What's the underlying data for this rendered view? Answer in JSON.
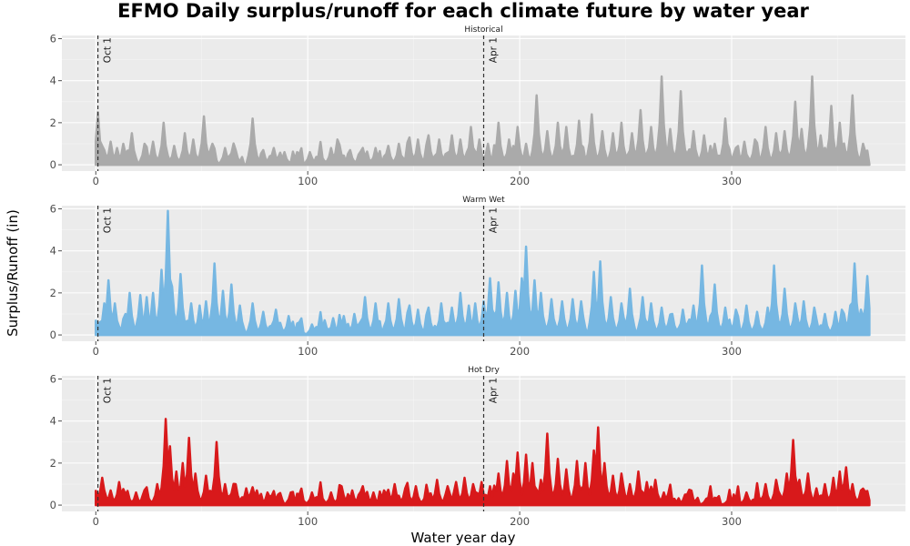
{
  "chart_data": {
    "type": "area",
    "title": "EFMO Daily surplus/runoff for each climate future by water year",
    "xlabel": "Water year day",
    "ylabel": "Surplus/Runoff (in)",
    "xlim": [
      -16,
      382
    ],
    "ylim": [
      -0.3,
      6.15
    ],
    "xticks": [
      "0",
      "100",
      "200",
      "300"
    ],
    "yticks": [
      "0",
      "2",
      "4",
      "6"
    ],
    "grid": true,
    "annotations": [
      {
        "label": "Oct 1",
        "x": 1
      },
      {
        "label": "Apr 1",
        "x": 183
      }
    ],
    "panels": [
      {
        "name": "Historical",
        "color": "#aaaaaa",
        "peaks": [
          [
            1,
            2.5
          ],
          [
            3,
            0.9
          ],
          [
            7,
            1.1
          ],
          [
            10,
            0.8
          ],
          [
            13,
            1.0
          ],
          [
            17,
            1.5
          ],
          [
            23,
            1.0
          ],
          [
            27,
            1.1
          ],
          [
            32,
            2.0
          ],
          [
            37,
            0.9
          ],
          [
            42,
            1.5
          ],
          [
            46,
            1.2
          ],
          [
            51,
            2.3
          ],
          [
            55,
            1.0
          ],
          [
            61,
            0.8
          ],
          [
            66,
            0.7
          ],
          [
            74,
            2.2
          ],
          [
            79,
            0.7
          ],
          [
            84,
            0.8
          ],
          [
            89,
            0.6
          ],
          [
            95,
            0.6
          ],
          [
            101,
            0.6
          ],
          [
            106,
            0.7
          ],
          [
            111,
            0.8
          ],
          [
            114,
            1.2
          ],
          [
            120,
            0.7
          ],
          [
            126,
            0.8
          ],
          [
            132,
            0.8
          ],
          [
            138,
            0.9
          ],
          [
            143,
            1.0
          ],
          [
            148,
            1.3
          ],
          [
            152,
            1.2
          ],
          [
            157,
            1.4
          ],
          [
            162,
            1.2
          ],
          [
            168,
            1.4
          ],
          [
            172,
            1.2
          ],
          [
            177,
            1.8
          ],
          [
            181,
            1.2
          ],
          [
            185,
            1.0
          ],
          [
            190,
            2.0
          ],
          [
            195,
            1.2
          ],
          [
            199,
            1.8
          ],
          [
            203,
            1.0
          ],
          [
            208,
            3.3
          ],
          [
            213,
            1.6
          ],
          [
            218,
            2.0
          ],
          [
            222,
            1.8
          ],
          [
            228,
            2.1
          ],
          [
            234,
            2.4
          ],
          [
            239,
            1.6
          ],
          [
            244,
            1.5
          ],
          [
            248,
            2.0
          ],
          [
            253,
            1.5
          ],
          [
            257,
            2.6
          ],
          [
            262,
            1.8
          ],
          [
            267,
            4.2
          ],
          [
            271,
            1.7
          ],
          [
            276,
            3.5
          ],
          [
            282,
            1.6
          ],
          [
            287,
            1.4
          ],
          [
            292,
            1.0
          ],
          [
            297,
            2.2
          ],
          [
            302,
            0.8
          ],
          [
            306,
            1.1
          ],
          [
            311,
            1.2
          ],
          [
            316,
            1.8
          ],
          [
            321,
            1.5
          ],
          [
            325,
            1.6
          ],
          [
            330,
            3.0
          ],
          [
            333,
            1.7
          ],
          [
            338,
            4.2
          ],
          [
            342,
            1.4
          ],
          [
            347,
            2.8
          ],
          [
            351,
            2.0
          ],
          [
            357,
            3.3
          ],
          [
            362,
            1.0
          ]
        ]
      },
      {
        "name": "Warm Wet",
        "color": "#76b7e2",
        "peaks": [
          [
            1,
            0.5
          ],
          [
            4,
            1.5
          ],
          [
            6,
            2.6
          ],
          [
            9,
            1.5
          ],
          [
            14,
            1.0
          ],
          [
            16,
            2.0
          ],
          [
            21,
            1.9
          ],
          [
            24,
            1.8
          ],
          [
            27,
            2.0
          ],
          [
            31,
            3.1
          ],
          [
            33,
            2.1
          ],
          [
            34,
            5.9
          ],
          [
            36,
            2.3
          ],
          [
            40,
            2.9
          ],
          [
            45,
            1.5
          ],
          [
            49,
            1.4
          ],
          [
            52,
            1.6
          ],
          [
            56,
            3.4
          ],
          [
            60,
            2.1
          ],
          [
            64,
            2.4
          ],
          [
            68,
            1.4
          ],
          [
            74,
            1.5
          ],
          [
            79,
            1.1
          ],
          [
            85,
            1.2
          ],
          [
            91,
            0.9
          ],
          [
            96,
            0.6
          ],
          [
            102,
            0.5
          ],
          [
            108,
            0.7
          ],
          [
            112,
            0.8
          ],
          [
            117,
            0.9
          ],
          [
            122,
            1.0
          ],
          [
            127,
            1.8
          ],
          [
            132,
            1.5
          ],
          [
            138,
            1.5
          ],
          [
            143,
            1.7
          ],
          [
            148,
            1.4
          ],
          [
            152,
            1.2
          ],
          [
            157,
            1.3
          ],
          [
            163,
            1.5
          ],
          [
            168,
            1.3
          ],
          [
            172,
            2.0
          ],
          [
            176,
            1.4
          ],
          [
            179,
            1.5
          ],
          [
            183,
            1.6
          ],
          [
            186,
            2.7
          ],
          [
            190,
            2.5
          ],
          [
            194,
            2.0
          ],
          [
            198,
            2.1
          ],
          [
            201,
            2.7
          ],
          [
            203,
            4.2
          ],
          [
            207,
            2.6
          ],
          [
            210,
            2.0
          ],
          [
            215,
            1.7
          ],
          [
            220,
            1.6
          ],
          [
            225,
            1.7
          ],
          [
            229,
            1.6
          ],
          [
            235,
            3.0
          ],
          [
            238,
            3.5
          ],
          [
            243,
            1.8
          ],
          [
            248,
            1.5
          ],
          [
            252,
            2.2
          ],
          [
            258,
            1.8
          ],
          [
            262,
            1.5
          ],
          [
            267,
            1.3
          ],
          [
            272,
            1.0
          ],
          [
            277,
            1.2
          ],
          [
            282,
            1.4
          ],
          [
            286,
            3.3
          ],
          [
            292,
            2.4
          ],
          [
            297,
            1.3
          ],
          [
            302,
            1.2
          ],
          [
            307,
            1.4
          ],
          [
            312,
            1.1
          ],
          [
            317,
            1.3
          ],
          [
            320,
            3.3
          ],
          [
            325,
            2.2
          ],
          [
            330,
            1.5
          ],
          [
            334,
            1.6
          ],
          [
            339,
            1.3
          ],
          [
            344,
            1.0
          ],
          [
            349,
            1.1
          ],
          [
            352,
            1.2
          ],
          [
            356,
            1.4
          ],
          [
            358,
            3.4
          ],
          [
            361,
            1.2
          ],
          [
            364,
            2.8
          ]
        ]
      },
      {
        "name": "Hot Dry",
        "color": "#d8191b",
        "peaks": [
          [
            1,
            0.3
          ],
          [
            3,
            1.3
          ],
          [
            7,
            0.7
          ],
          [
            11,
            1.1
          ],
          [
            15,
            0.6
          ],
          [
            19,
            0.6
          ],
          [
            24,
            0.7
          ],
          [
            29,
            1.0
          ],
          [
            33,
            4.1
          ],
          [
            35,
            2.8
          ],
          [
            38,
            1.6
          ],
          [
            41,
            2.0
          ],
          [
            44,
            3.2
          ],
          [
            47,
            1.5
          ],
          [
            52,
            1.4
          ],
          [
            57,
            3.0
          ],
          [
            61,
            1.0
          ],
          [
            66,
            1.0
          ],
          [
            71,
            0.8
          ],
          [
            76,
            0.7
          ],
          [
            81,
            0.6
          ],
          [
            86,
            0.5
          ],
          [
            92,
            0.6
          ],
          [
            97,
            0.5
          ],
          [
            102,
            0.6
          ],
          [
            106,
            0.7
          ],
          [
            111,
            0.6
          ],
          [
            116,
            0.9
          ],
          [
            121,
            0.7
          ],
          [
            126,
            0.9
          ],
          [
            131,
            0.6
          ],
          [
            136,
            0.7
          ],
          [
            141,
            1.0
          ],
          [
            146,
            0.8
          ],
          [
            151,
            0.9
          ],
          [
            156,
            0.7
          ],
          [
            161,
            1.2
          ],
          [
            166,
            0.9
          ],
          [
            170,
            1.1
          ],
          [
            174,
            1.3
          ],
          [
            178,
            1.0
          ],
          [
            182,
            1.1
          ],
          [
            186,
            0.9
          ],
          [
            190,
            1.5
          ],
          [
            194,
            2.1
          ],
          [
            197,
            1.5
          ],
          [
            199,
            2.5
          ],
          [
            203,
            2.4
          ],
          [
            206,
            2.0
          ],
          [
            210,
            1.2
          ],
          [
            213,
            3.4
          ],
          [
            218,
            2.2
          ],
          [
            222,
            1.7
          ],
          [
            227,
            2.1
          ],
          [
            231,
            2.0
          ],
          [
            235,
            2.6
          ],
          [
            237,
            3.7
          ],
          [
            240,
            2.0
          ],
          [
            244,
            1.4
          ],
          [
            248,
            1.5
          ],
          [
            252,
            1.0
          ],
          [
            256,
            1.6
          ],
          [
            260,
            1.1
          ],
          [
            264,
            1.2
          ],
          [
            268,
            0.6
          ],
          [
            273,
            0.3
          ],
          [
            278,
            0.5
          ],
          [
            283,
            0.2
          ],
          [
            288,
            0.3
          ],
          [
            293,
            0.2
          ],
          [
            298,
            0.2
          ],
          [
            303,
            0.3
          ],
          [
            307,
            0.6
          ],
          [
            312,
            0.4
          ],
          [
            316,
            1.0
          ],
          [
            321,
            1.2
          ],
          [
            326,
            1.5
          ],
          [
            329,
            3.1
          ],
          [
            332,
            1.2
          ],
          [
            336,
            1.5
          ],
          [
            340,
            0.8
          ],
          [
            344,
            1.0
          ],
          [
            348,
            1.3
          ],
          [
            351,
            1.6
          ],
          [
            354,
            1.8
          ],
          [
            357,
            1.0
          ],
          [
            361,
            0.7
          ],
          [
            364,
            0.5
          ]
        ]
      }
    ]
  }
}
